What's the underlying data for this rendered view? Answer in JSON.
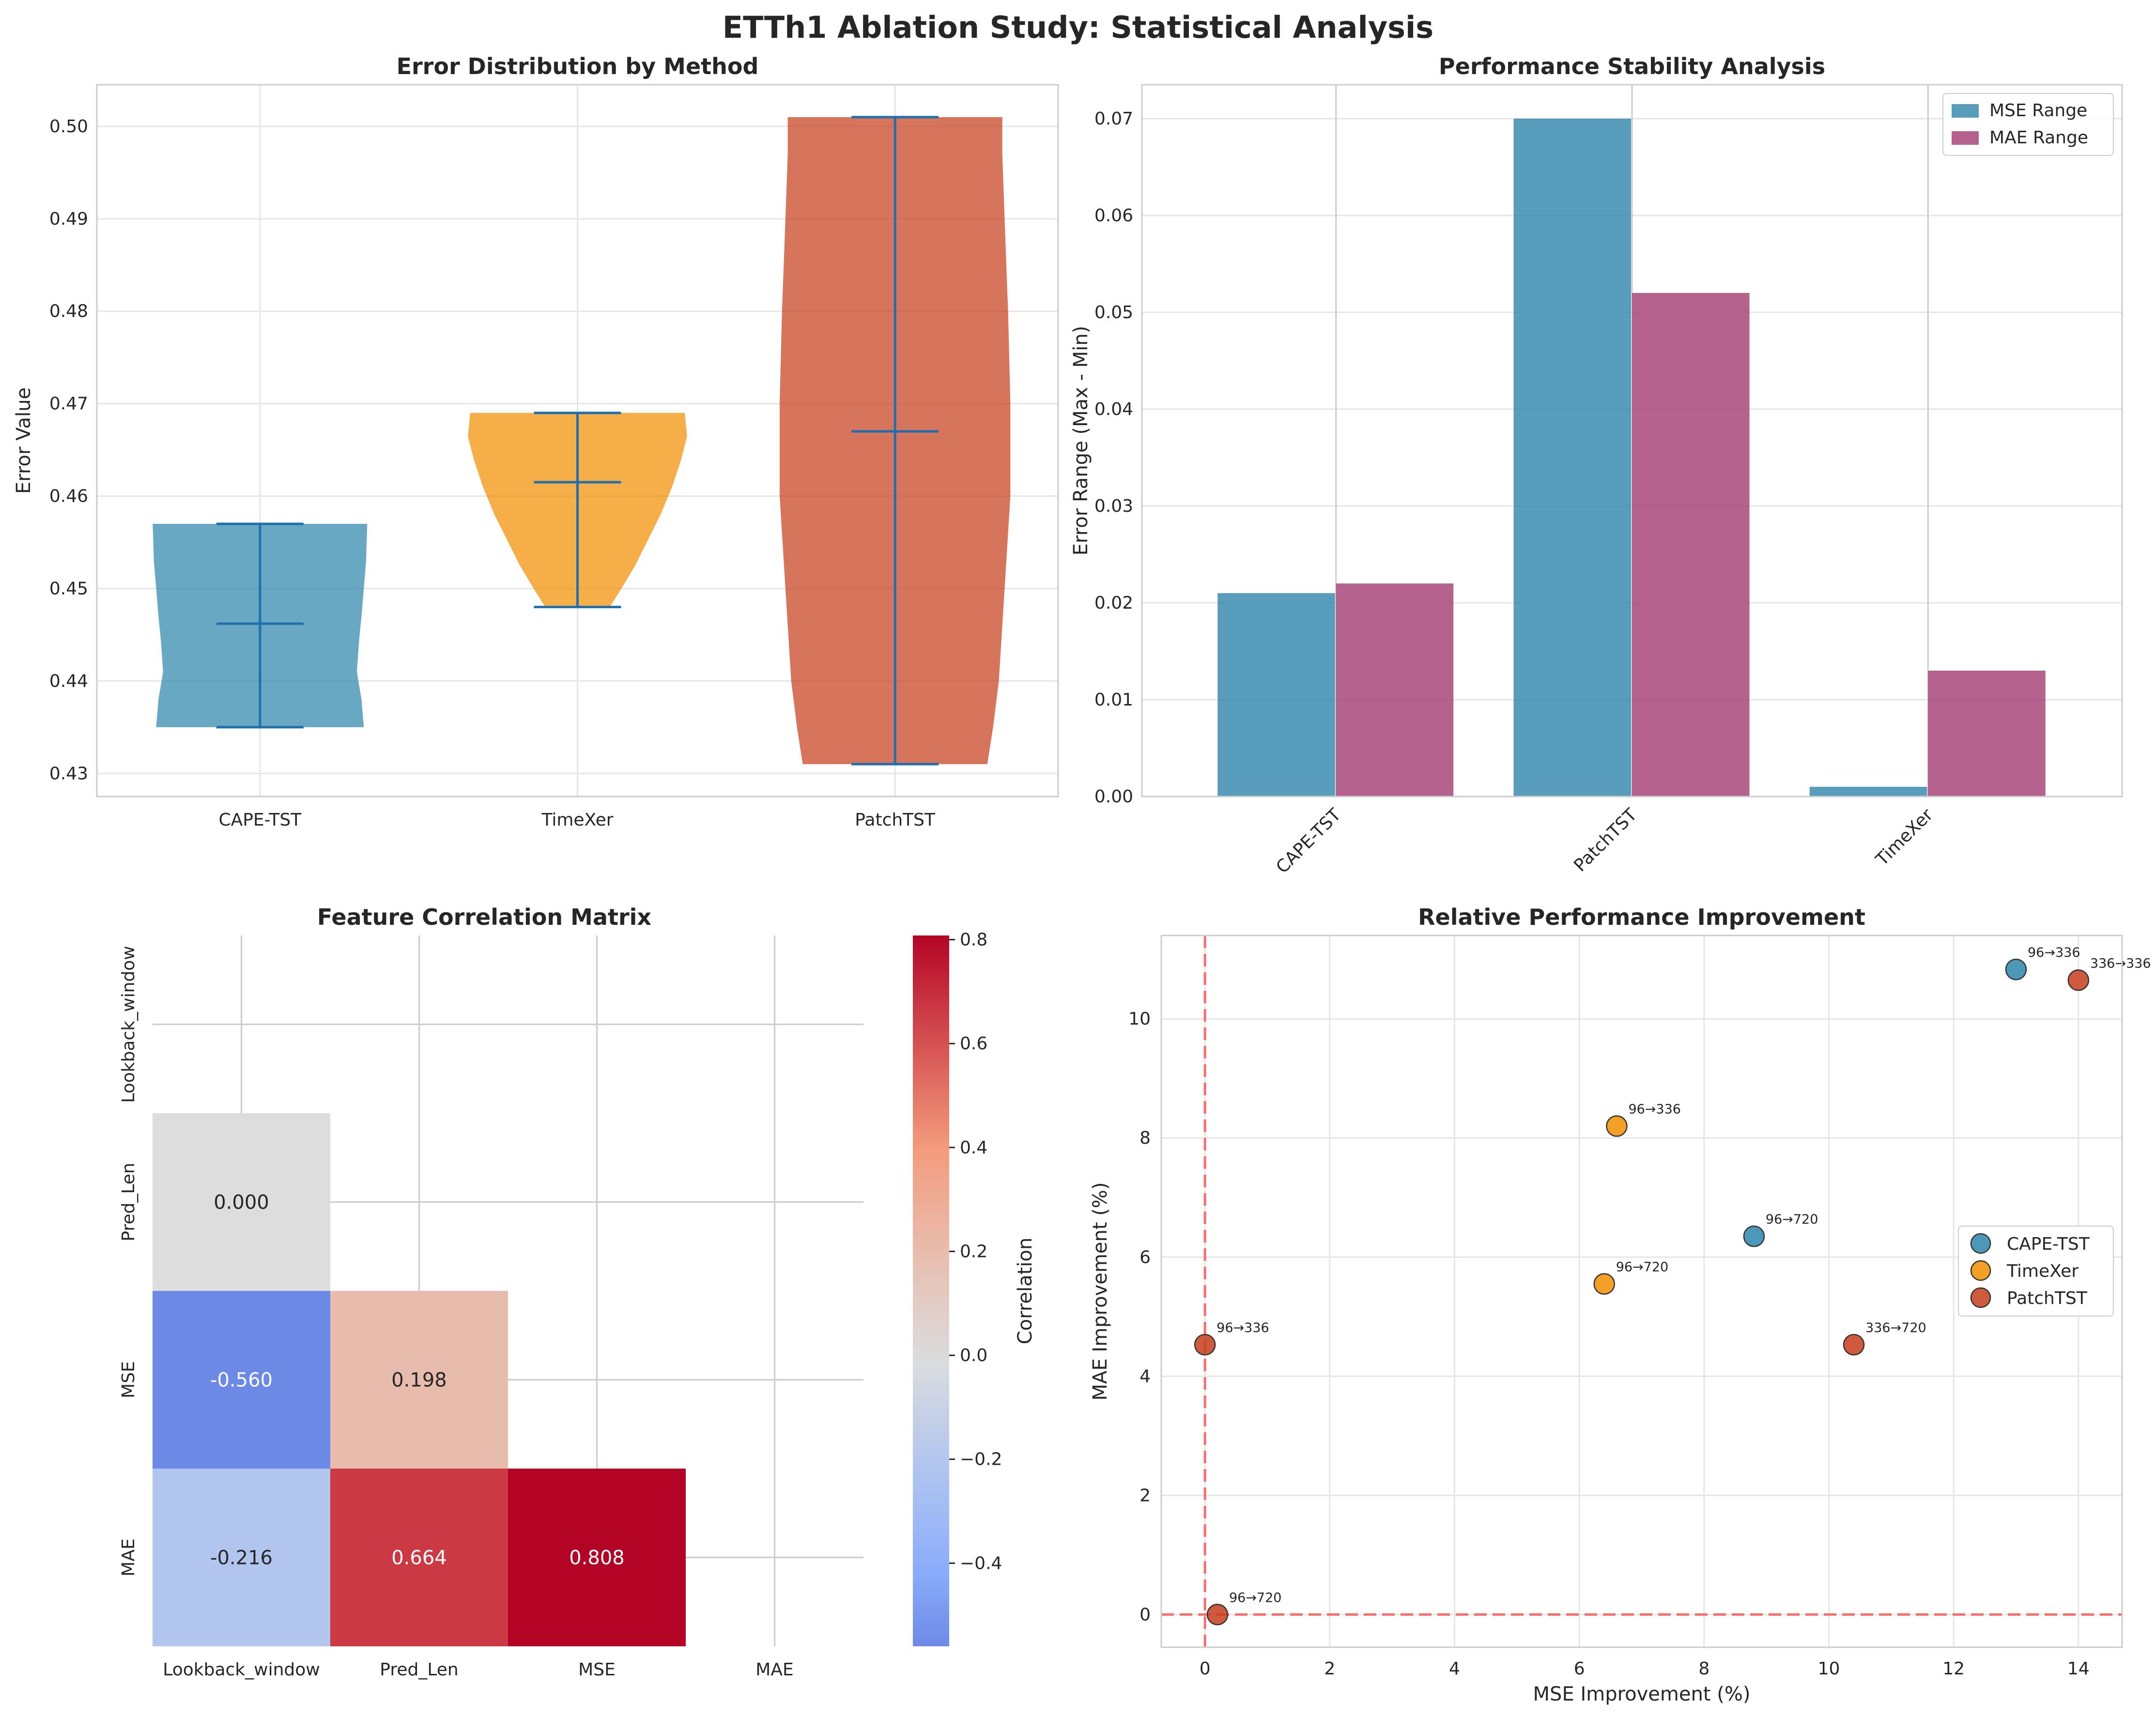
{
  "suptitle": "ETTh1 Ablation Study: Statistical Analysis",
  "colors": {
    "cape": "#2E86AB",
    "timexer": "#F18F01",
    "patchtst": "#C73E1D",
    "mse_bar": "#2E86AB",
    "mae_bar": "#A23B72",
    "violin_line": "#1f6fb0",
    "ref_line": "#ff5555"
  },
  "chart_data": [
    {
      "type": "violin",
      "title": "Error Distribution by Method",
      "xlabel": "",
      "ylabel": "Error Value",
      "categories": [
        "CAPE-TST",
        "TimeXer",
        "PatchTST"
      ],
      "ylim": [
        0.4275,
        0.5045
      ],
      "yticks": [
        0.43,
        0.44,
        0.45,
        0.46,
        0.47,
        0.48,
        0.49,
        0.5
      ],
      "ytick_labels": [
        "0.43",
        "0.44",
        "0.45",
        "0.46",
        "0.47",
        "0.48",
        "0.49",
        "0.50"
      ],
      "series": [
        {
          "name": "CAPE-TST",
          "min": 0.435,
          "max": 0.457,
          "mean": 0.4462,
          "density": [
            [
              0.435,
              0.9
            ],
            [
              0.438,
              0.88
            ],
            [
              0.441,
              0.84
            ],
            [
              0.4445,
              0.86
            ],
            [
              0.447,
              0.88
            ],
            [
              0.45,
              0.9
            ],
            [
              0.453,
              0.92
            ],
            [
              0.457,
              0.93
            ]
          ]
        },
        {
          "name": "TimeXer",
          "min": 0.448,
          "max": 0.469,
          "mean": 0.4615,
          "density": [
            [
              0.448,
              0.28
            ],
            [
              0.45,
              0.38
            ],
            [
              0.4525,
              0.5
            ],
            [
              0.455,
              0.6
            ],
            [
              0.458,
              0.72
            ],
            [
              0.461,
              0.82
            ],
            [
              0.464,
              0.9
            ],
            [
              0.4665,
              0.95
            ],
            [
              0.469,
              0.93
            ]
          ]
        },
        {
          "name": "PatchTST",
          "min": 0.431,
          "max": 0.501,
          "mean": 0.467,
          "density": [
            [
              0.431,
              0.8
            ],
            [
              0.435,
              0.85
            ],
            [
              0.44,
              0.9
            ],
            [
              0.45,
              0.95
            ],
            [
              0.46,
              1.0
            ],
            [
              0.47,
              1.0
            ],
            [
              0.48,
              0.98
            ],
            [
              0.49,
              0.95
            ],
            [
              0.497,
              0.93
            ],
            [
              0.501,
              0.93
            ]
          ]
        }
      ]
    },
    {
      "type": "bar",
      "title": "Performance Stability Analysis",
      "xlabel": "",
      "ylabel": "Error Range (Max - Min)",
      "categories": [
        "CAPE-TST",
        "PatchTST",
        "TimeXer"
      ],
      "ylim": [
        0,
        0.0735
      ],
      "yticks": [
        0,
        0.01,
        0.02,
        0.03,
        0.04,
        0.05,
        0.06,
        0.07
      ],
      "ytick_labels": [
        "0.00",
        "0.01",
        "0.02",
        "0.03",
        "0.04",
        "0.05",
        "0.06",
        "0.07"
      ],
      "series": [
        {
          "name": "MSE Range",
          "values": [
            0.021,
            0.07,
            0.001
          ]
        },
        {
          "name": "MAE Range",
          "values": [
            0.022,
            0.052,
            0.013
          ]
        }
      ],
      "legend": "top-right"
    },
    {
      "type": "heatmap",
      "title": "Feature Correlation Matrix",
      "labels": [
        "Lookback_window",
        "Pred_Len",
        "MSE",
        "MAE"
      ],
      "cells": [
        {
          "row": 1,
          "col": 0,
          "value": 0.0,
          "label": "0.000"
        },
        {
          "row": 2,
          "col": 0,
          "value": -0.56,
          "label": "-0.560"
        },
        {
          "row": 2,
          "col": 1,
          "value": 0.198,
          "label": "0.198"
        },
        {
          "row": 3,
          "col": 0,
          "value": -0.216,
          "label": "-0.216"
        },
        {
          "row": 3,
          "col": 1,
          "value": 0.664,
          "label": "0.664"
        },
        {
          "row": 3,
          "col": 2,
          "value": 0.808,
          "label": "0.808"
        }
      ],
      "colorbar": {
        "label": "Correlation",
        "range": [
          -0.56,
          0.808
        ],
        "ticks": [
          -0.4,
          -0.2,
          0.0,
          0.2,
          0.4,
          0.6,
          0.8
        ],
        "tick_labels": [
          "−0.4",
          "−0.2",
          "0.0",
          "0.2",
          "0.4",
          "0.6",
          "0.8"
        ]
      }
    },
    {
      "type": "scatter",
      "title": "Relative Performance Improvement",
      "xlabel": "MSE Improvement (%)",
      "ylabel": "MAE Improvement (%)",
      "xlim": [
        -0.7,
        14.7
      ],
      "ylim": [
        -0.55,
        11.4
      ],
      "xticks": [
        0,
        2,
        4,
        6,
        8,
        10,
        12,
        14
      ],
      "yticks": [
        0,
        2,
        4,
        6,
        8,
        10
      ],
      "xtick_labels": [
        "0",
        "2",
        "4",
        "6",
        "8",
        "10",
        "12",
        "14"
      ],
      "ytick_labels": [
        "0",
        "2",
        "4",
        "6",
        "8",
        "10"
      ],
      "reference_lines": {
        "x": 0,
        "y": 0
      },
      "series": [
        {
          "name": "CAPE-TST",
          "points": [
            {
              "x": 13.0,
              "y": 10.83,
              "label": "96→336"
            },
            {
              "x": 8.8,
              "y": 6.35,
              "label": "96→720"
            }
          ]
        },
        {
          "name": "TimeXer",
          "points": [
            {
              "x": 6.6,
              "y": 8.2,
              "label": "96→336"
            },
            {
              "x": 6.4,
              "y": 5.55,
              "label": "96→720"
            }
          ]
        },
        {
          "name": "PatchTST",
          "points": [
            {
              "x": 14.0,
              "y": 10.65,
              "label": "336→336"
            },
            {
              "x": 10.4,
              "y": 4.53,
              "label": "336→720"
            },
            {
              "x": 0.0,
              "y": 4.53,
              "label": "96→336"
            },
            {
              "x": 0.2,
              "y": 0.0,
              "label": "96→720"
            }
          ]
        }
      ],
      "legend": "center-right"
    }
  ]
}
